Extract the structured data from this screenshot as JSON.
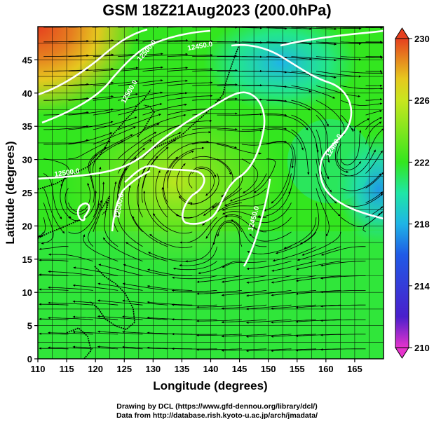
{
  "title": "GSM 18Z21Aug2023 (200.0hPa)",
  "x_axis": {
    "label": "Longitude (degrees)",
    "ticks": [
      "110",
      "115",
      "120",
      "125",
      "130",
      "135",
      "140",
      "145",
      "150",
      "155",
      "160",
      "165"
    ]
  },
  "y_axis": {
    "label": "Latitude  (degrees)",
    "ticks": [
      "0",
      "5",
      "10",
      "15",
      "20",
      "25",
      "30",
      "35",
      "40",
      "45"
    ]
  },
  "colorbar": {
    "ticks": [
      "210",
      "214",
      "218",
      "222",
      "226",
      "230"
    ],
    "colors": [
      "#e633cc",
      "#4a1fcc",
      "#1f5ae6",
      "#1fb4e6",
      "#1fe6a6",
      "#33e61f",
      "#7fe61f",
      "#c8e61f",
      "#e6c81f",
      "#e6801f",
      "#e6401f"
    ]
  },
  "contours": [
    {
      "label": "12500.0"
    },
    {
      "label": "12500.0"
    },
    {
      "label": "12500.0"
    },
    {
      "label": "12500.0"
    },
    {
      "label": "12450.0"
    },
    {
      "label": "12450.0"
    },
    {
      "label": "12400.0"
    }
  ],
  "footer": {
    "line1": "Drawing by DCL (https://www.gfd-dennou.org/library/dcl/)",
    "line2": "Data from http://database.rish.kyoto-u.ac.jp/arch/jmadata/"
  },
  "map_data": {
    "lon_range": [
      110,
      170
    ],
    "lat_range": [
      0,
      50
    ],
    "field": "temperature",
    "colorbar_range": [
      210,
      230
    ]
  }
}
